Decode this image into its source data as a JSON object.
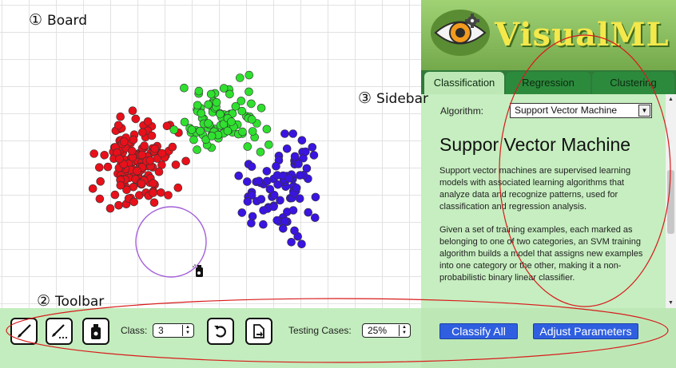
{
  "annotations": {
    "board": {
      "num": "①",
      "label": "Board"
    },
    "toolbar": {
      "num": "②",
      "label": "Toolbar"
    },
    "sidebar": {
      "num": "③",
      "label": "Sidebar"
    }
  },
  "colors": {
    "class_red": "#e8101a",
    "class_green": "#2fe02f",
    "class_blue": "#3a14e0",
    "selection_circle": "#a35fd8",
    "annotation_ellipse": "#d81b1b",
    "tab_active": "#bde8b6",
    "button_blue": "#2f5fe0",
    "logo_text": "#f4e84b"
  },
  "board": {
    "cursor_icon": "spray-can-icon"
  },
  "app": {
    "logo_icon": "eye-gear-icon",
    "title": "VisualML"
  },
  "tabs": [
    {
      "label": "Classification",
      "active": true
    },
    {
      "label": "Regression",
      "active": false
    },
    {
      "label": "Clustering",
      "active": false
    }
  ],
  "sidebar": {
    "algorithm_label": "Algorithm:",
    "algorithm_selected": "Support Vector Machine",
    "heading": "Suppor Vector Machine",
    "paragraph1": "Support vector machines are supervised learning models with associated learning algorithms that analyze data and recognize patterns, used for classification and regression analysis.",
    "paragraph2": "Given a set of training examples, each marked as belonging to one of two categories, an SVM training algorithm builds a model that assigns new examples into one category or the other, making it a non-probabilistic binary linear classifier."
  },
  "toolbar": {
    "tools": [
      "brush-icon",
      "scatter-brush-icon",
      "spray-can-icon"
    ],
    "class_label": "Class:",
    "class_value": "3",
    "reset_icon": "undo-icon",
    "export_icon": "document-icon",
    "testing_label": "Testing Cases:",
    "testing_value": "25%"
  },
  "actions": {
    "classify_all": "Classify All",
    "adjust_parameters": "Adjust Parameters"
  }
}
